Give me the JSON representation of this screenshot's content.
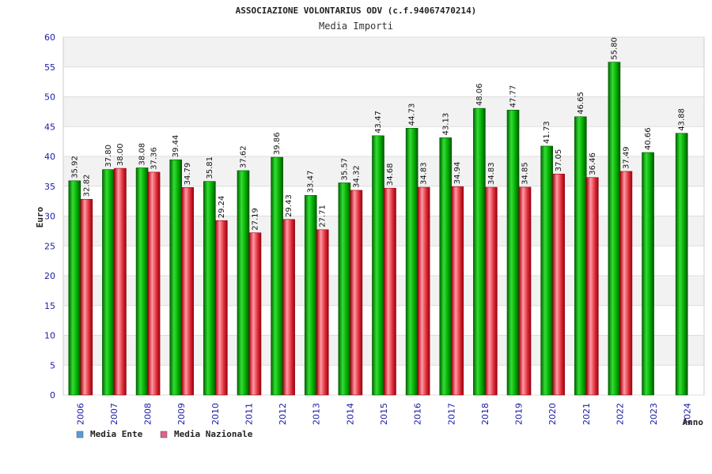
{
  "chart_data": {
    "type": "bar",
    "title": "ASSOCIAZIONE VOLONTARIUS ODV (c.f.94067470214)",
    "subtitle": "Media Importi",
    "xlabel": "Anno",
    "ylabel": "Euro",
    "ylim": [
      0,
      60
    ],
    "yticks": [
      0,
      5,
      10,
      15,
      20,
      25,
      30,
      35,
      40,
      45,
      50,
      55,
      60
    ],
    "grid": true,
    "legend_position": "bottom-left",
    "categories": [
      "2006",
      "2007",
      "2008",
      "2009",
      "2010",
      "2011",
      "2012",
      "2013",
      "2014",
      "2015",
      "2016",
      "2017",
      "2018",
      "2019",
      "2020",
      "2021",
      "2022",
      "2023",
      "2024"
    ],
    "series": [
      {
        "name": "Media Ente",
        "color": "#00aa00",
        "legend_color": "#5b9bd5",
        "values": [
          35.92,
          37.8,
          38.08,
          39.44,
          35.81,
          37.62,
          39.86,
          33.47,
          35.57,
          43.47,
          44.73,
          43.13,
          48.06,
          47.77,
          41.73,
          46.65,
          55.8,
          40.66,
          43.88
        ],
        "labels": [
          "35.92",
          "37.80",
          "38.08",
          "39.44",
          "35.81",
          "37.62",
          "39.86",
          "33.47",
          "35.57",
          "43.47",
          "44.73",
          "43.13",
          "48.06",
          "47.77",
          "41.73",
          "46.65",
          "55.80",
          "40.66",
          "43.88"
        ]
      },
      {
        "name": "Media Nazionale",
        "color": "#e0303a",
        "legend_color": "#e06090",
        "values": [
          32.82,
          38.0,
          37.36,
          34.79,
          29.24,
          27.19,
          29.43,
          27.71,
          34.32,
          34.68,
          34.83,
          34.94,
          34.83,
          34.85,
          37.05,
          36.46,
          37.49,
          null,
          null
        ],
        "labels": [
          "32.82",
          "38.00",
          "37.36",
          "34.79",
          "29.24",
          "27.19",
          "29.43",
          "27.71",
          "34.32",
          "34.68",
          "34.83",
          "34.94",
          "34.83",
          "34.85",
          "37.05",
          "36.46",
          "37.49",
          null,
          null
        ]
      }
    ]
  }
}
